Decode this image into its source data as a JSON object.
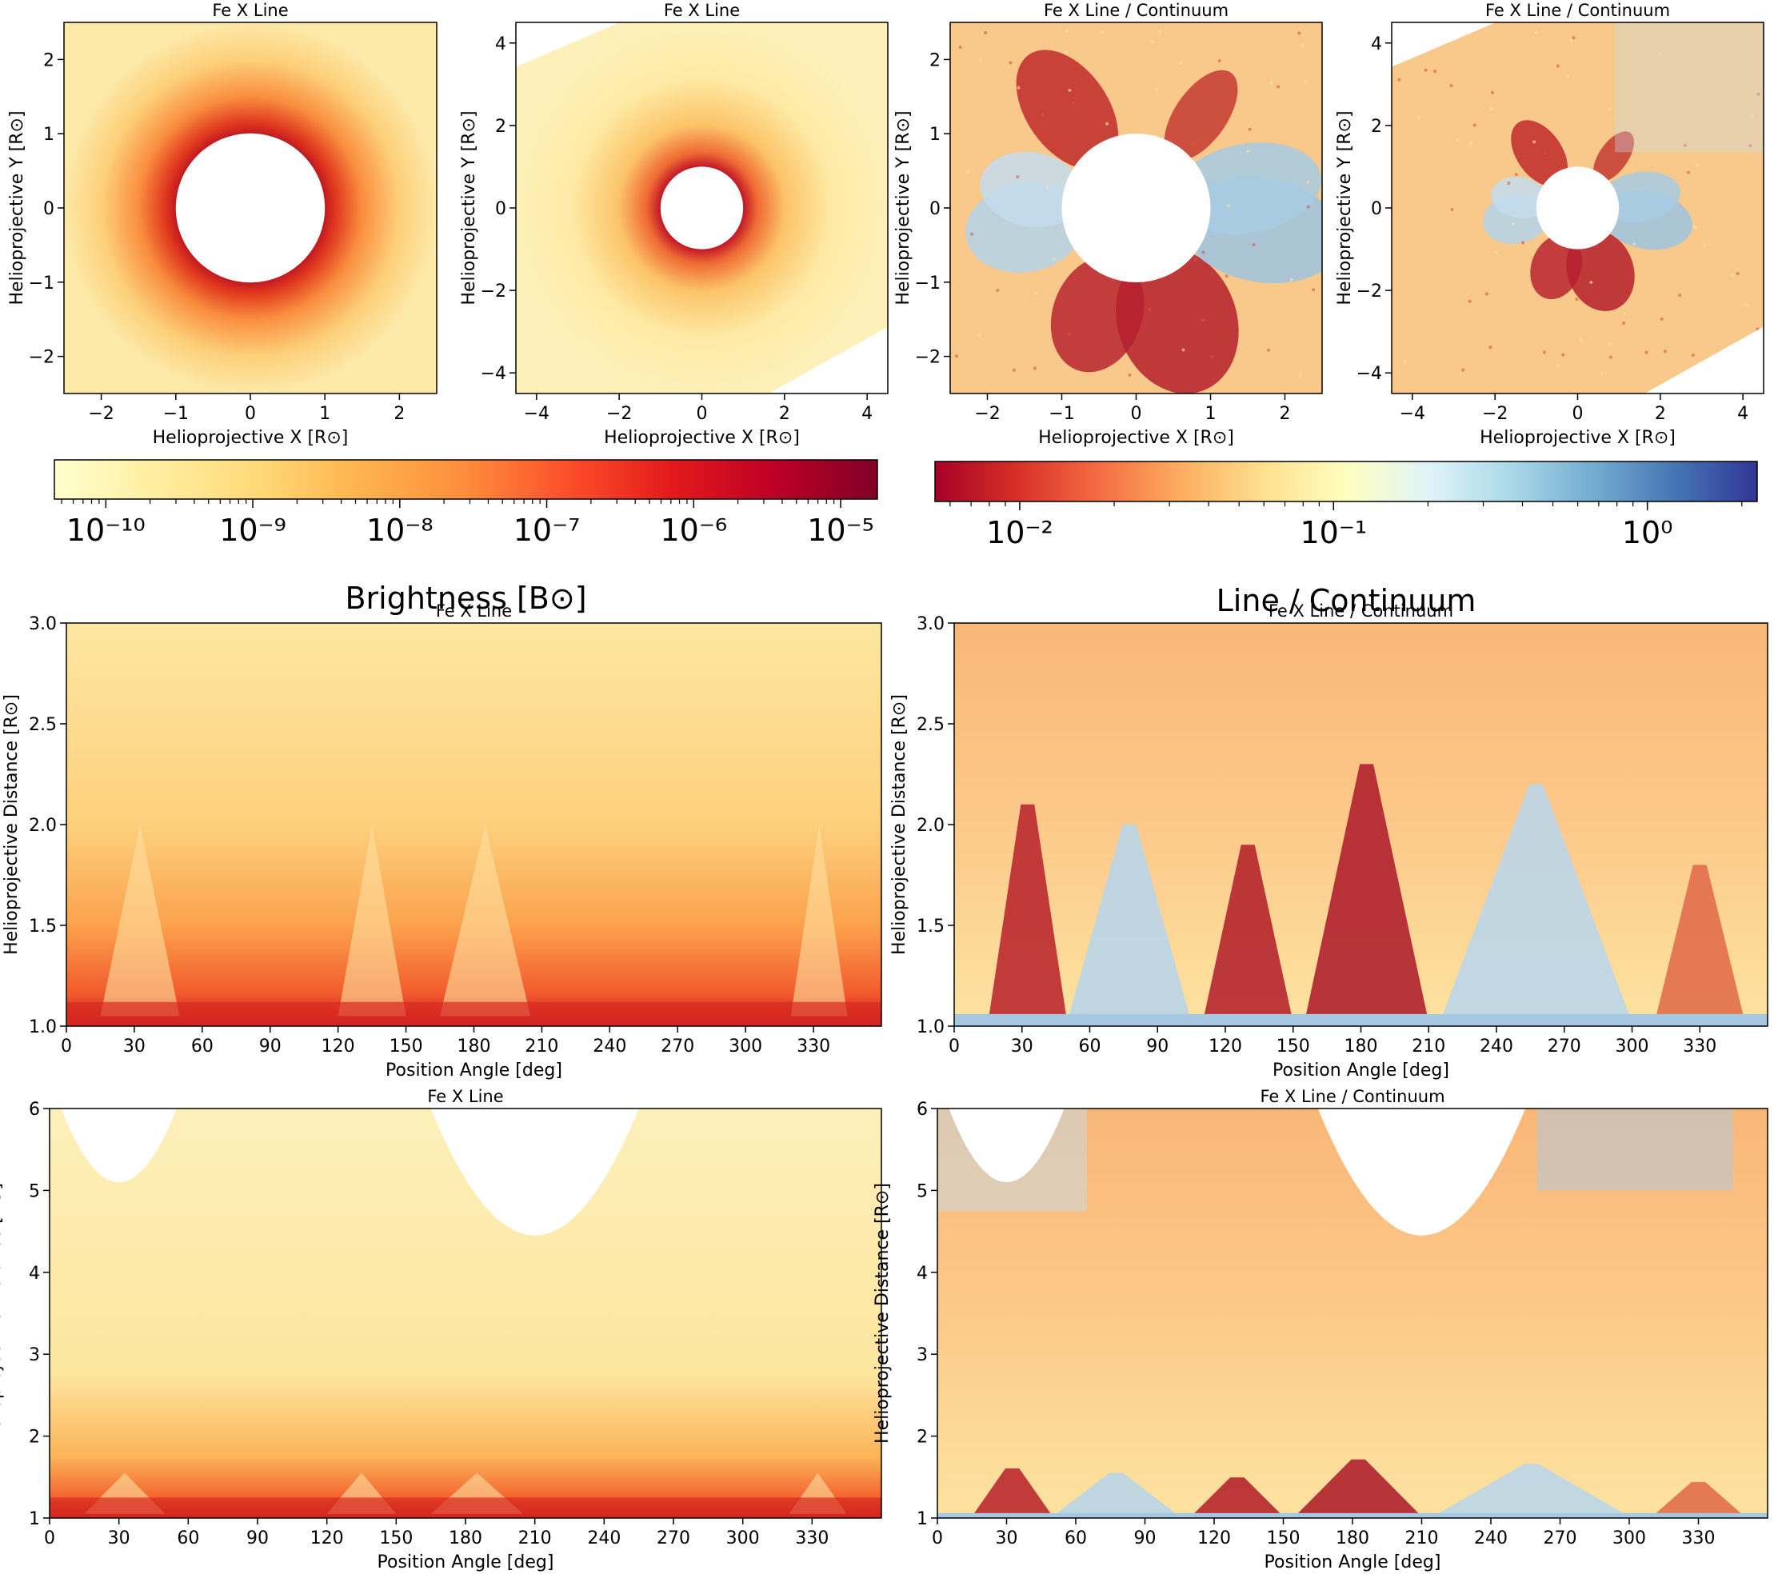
{
  "figure": {
    "colorbar_brightness": {
      "label": "Brightness [B⊙]",
      "tick_labels": [
        "10⁻¹⁰",
        "10⁻⁹",
        "10⁻⁸",
        "10⁻⁷",
        "10⁻⁶",
        "10⁻⁵"
      ],
      "exponents": [
        -10,
        -9,
        -8,
        -7,
        -6,
        -5
      ],
      "log_range": [
        -10.35,
        -4.75
      ],
      "colormap": [
        "#ffffcc",
        "#ffeda0",
        "#fed976",
        "#feb24c",
        "#fd8d3c",
        "#fc4e2a",
        "#e31a1c",
        "#bd0026",
        "#800026"
      ]
    },
    "colorbar_ratio": {
      "label": "Line / Continuum",
      "tick_labels": [
        "10⁻²",
        "10⁻¹",
        "10⁰"
      ],
      "exponents": [
        -2,
        -1,
        0
      ],
      "log_range": [
        -2.27,
        0.35
      ],
      "colormap": [
        "#a50026",
        "#d73027",
        "#f46d43",
        "#fdae61",
        "#fee090",
        "#ffffbf",
        "#e0f3f8",
        "#abd9e9",
        "#74add1",
        "#4575b4",
        "#313695"
      ]
    }
  },
  "chart_data": [
    {
      "type": "heatmap",
      "title": "Fe X Line",
      "xlabel": "Helioprojective X [R⊙]",
      "ylabel": "Helioprojective Y [R⊙]",
      "xlim": [
        -2.5,
        2.5
      ],
      "ylim": [
        -2.5,
        2.5
      ],
      "xticks": [
        -2,
        -1,
        0,
        1,
        2
      ],
      "yticks": [
        -2,
        -1,
        0,
        1,
        2
      ],
      "xtick_labels": [
        "−2",
        "−1",
        "0",
        "1",
        "2"
      ],
      "ytick_labels": [
        "−2",
        "−1",
        "0",
        "1",
        "2"
      ],
      "occulter_radius": 1.0,
      "colormap": "brightness"
    },
    {
      "type": "heatmap",
      "title": "Fe X Line",
      "xlabel": "Helioprojective X [R⊙]",
      "ylabel": "Helioprojective Y [R⊙]",
      "xlim": [
        -4.5,
        4.5
      ],
      "ylim": [
        -4.5,
        4.5
      ],
      "xticks": [
        -4,
        -2,
        0,
        2,
        4
      ],
      "yticks": [
        -4,
        -2,
        0,
        2,
        4
      ],
      "xtick_labels": [
        "−4",
        "−2",
        "0",
        "2",
        "4"
      ],
      "ytick_labels": [
        "−4",
        "−2",
        "0",
        "2",
        "4"
      ],
      "occulter_radius": 1.0,
      "colormap": "brightness"
    },
    {
      "type": "heatmap",
      "title": "Fe X Line / Continuum",
      "xlabel": "Helioprojective X [R⊙]",
      "ylabel": "Helioprojective Y [R⊙]",
      "xlim": [
        -2.5,
        2.5
      ],
      "ylim": [
        -2.5,
        2.5
      ],
      "xticks": [
        -2,
        -1,
        0,
        1,
        2
      ],
      "yticks": [
        -2,
        -1,
        0,
        1,
        2
      ],
      "xtick_labels": [
        "−2",
        "−1",
        "0",
        "1",
        "2"
      ],
      "ytick_labels": [
        "−2",
        "−1",
        "0",
        "1",
        "2"
      ],
      "occulter_radius": 1.0,
      "colormap": "ratio"
    },
    {
      "type": "heatmap",
      "title": "Fe X Line / Continuum",
      "xlabel": "Helioprojective X [R⊙]",
      "ylabel": "Helioprojective Y [R⊙]",
      "xlim": [
        -4.5,
        4.5
      ],
      "ylim": [
        -4.5,
        4.5
      ],
      "xticks": [
        -4,
        -2,
        0,
        2,
        4
      ],
      "yticks": [
        -4,
        -2,
        0,
        2,
        4
      ],
      "xtick_labels": [
        "−4",
        "−2",
        "0",
        "2",
        "4"
      ],
      "ytick_labels": [
        "−4",
        "−2",
        "0",
        "2",
        "4"
      ],
      "occulter_radius": 1.0,
      "colormap": "ratio"
    },
    {
      "type": "heatmap",
      "title": "Fe X Line",
      "xlabel": "Position Angle [deg]",
      "ylabel": "Helioprojective Distance [R⊙]",
      "xlim": [
        0,
        360
      ],
      "ylim": [
        1.0,
        3.0
      ],
      "xticks": [
        0,
        30,
        60,
        90,
        120,
        150,
        180,
        210,
        240,
        270,
        300,
        330
      ],
      "yticks": [
        1.0,
        1.5,
        2.0,
        2.5,
        3.0
      ],
      "xtick_labels": [
        "0",
        "30",
        "60",
        "90",
        "120",
        "150",
        "180",
        "210",
        "240",
        "270",
        "300",
        "330"
      ],
      "ytick_labels": [
        "1.0",
        "1.5",
        "2.0",
        "2.5",
        "3.0"
      ],
      "colormap": "brightness"
    },
    {
      "type": "heatmap",
      "title": "Fe X Line / Continuum",
      "xlabel": "Position Angle [deg]",
      "ylabel": "Helioprojective Distance [R⊙]",
      "xlim": [
        0,
        360
      ],
      "ylim": [
        1.0,
        3.0
      ],
      "xticks": [
        0,
        30,
        60,
        90,
        120,
        150,
        180,
        210,
        240,
        270,
        300,
        330
      ],
      "yticks": [
        1.0,
        1.5,
        2.0,
        2.5,
        3.0
      ],
      "xtick_labels": [
        "0",
        "30",
        "60",
        "90",
        "120",
        "150",
        "180",
        "210",
        "240",
        "270",
        "300",
        "330"
      ],
      "ytick_labels": [
        "1.0",
        "1.5",
        "2.0",
        "2.5",
        "3.0"
      ],
      "colormap": "ratio"
    },
    {
      "type": "heatmap",
      "title": "Fe X Line",
      "xlabel": "Position Angle [deg]",
      "ylabel": "Helioprojective Distance [R⊙]",
      "xlim": [
        0,
        360
      ],
      "ylim": [
        1,
        6
      ],
      "xticks": [
        0,
        30,
        60,
        90,
        120,
        150,
        180,
        210,
        240,
        270,
        300,
        330
      ],
      "yticks": [
        1,
        2,
        3,
        4,
        5,
        6
      ],
      "xtick_labels": [
        "0",
        "30",
        "60",
        "90",
        "120",
        "150",
        "180",
        "210",
        "240",
        "270",
        "300",
        "330"
      ],
      "ytick_labels": [
        "1",
        "2",
        "3",
        "4",
        "5",
        "6"
      ],
      "colormap": "brightness"
    },
    {
      "type": "heatmap",
      "title": "Fe X Line / Continuum",
      "xlabel": "Position Angle [deg]",
      "ylabel": "Helioprojective Distance [R⊙]",
      "xlim": [
        0,
        360
      ],
      "ylim": [
        1,
        6
      ],
      "xticks": [
        0,
        30,
        60,
        90,
        120,
        150,
        180,
        210,
        240,
        270,
        300,
        330
      ],
      "yticks": [
        1,
        2,
        3,
        4,
        5,
        6
      ],
      "xtick_labels": [
        "0",
        "30",
        "60",
        "90",
        "120",
        "150",
        "180",
        "210",
        "240",
        "270",
        "300",
        "330"
      ],
      "ytick_labels": [
        "1",
        "2",
        "3",
        "4",
        "5",
        "6"
      ],
      "colormap": "ratio"
    }
  ]
}
